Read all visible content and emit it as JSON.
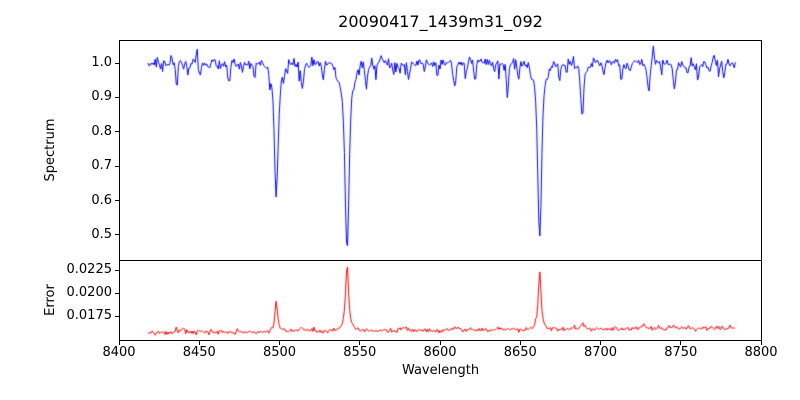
{
  "figure": {
    "background": "#ffffff",
    "text_color": "#000000",
    "spine_color": "#000000"
  },
  "chart_data": {
    "type": "line",
    "title": "20090417_1439m31_092",
    "xlabel": "Wavelength",
    "xlim": [
      8400,
      8800
    ],
    "x_ticks": [
      {
        "value": 8400,
        "label": "8400"
      },
      {
        "value": 8450,
        "label": "8450"
      },
      {
        "value": 8500,
        "label": "8500"
      },
      {
        "value": 8550,
        "label": "8550"
      },
      {
        "value": 8600,
        "label": "8600"
      },
      {
        "value": 8650,
        "label": "8650"
      },
      {
        "value": 8700,
        "label": "8700"
      },
      {
        "value": 8750,
        "label": "8750"
      },
      {
        "value": 8800,
        "label": "8800"
      }
    ],
    "data_x_start": 8418,
    "data_x_end": 8784,
    "n_points": 560,
    "panels": [
      {
        "name": "spectrum",
        "ylabel": "Spectrum",
        "color": "#0000ff",
        "ylim": [
          0.427,
          1.067
        ],
        "y_ticks": [
          {
            "value": 1.0,
            "label": "1.0"
          },
          {
            "value": 0.9,
            "label": "0.9"
          },
          {
            "value": 0.8,
            "label": "0.8"
          },
          {
            "value": 0.7,
            "label": "0.7"
          },
          {
            "value": 0.6,
            "label": "0.6"
          },
          {
            "value": 0.5,
            "label": "0.5"
          }
        ],
        "continuum": 1.0,
        "noise_sigma": 0.008,
        "dip_noise_prob": 0.07,
        "dip_noise_max": 0.045,
        "absorption_lines": [
          {
            "center": 8498.0,
            "depth": 0.28,
            "sigma": 1.05,
            "wing_depth": 0.095,
            "wing_sigma": 3.2
          },
          {
            "center": 8542.1,
            "depth": 0.42,
            "sigma": 1.15,
            "wing_depth": 0.125,
            "wing_sigma": 3.8
          },
          {
            "center": 8662.1,
            "depth": 0.4,
            "sigma": 1.1,
            "wing_depth": 0.105,
            "wing_sigma": 3.5
          },
          {
            "center": 8688.6,
            "depth": 0.125,
            "sigma": 1.0,
            "wing_depth": 0.022,
            "wing_sigma": 2.5
          },
          {
            "center": 8436.0,
            "depth": 0.055,
            "sigma": 0.7
          },
          {
            "center": 8443.0,
            "depth": 0.035,
            "sigma": 0.6
          },
          {
            "center": 8450.5,
            "depth": 0.03,
            "sigma": 0.6
          },
          {
            "center": 8468.5,
            "depth": 0.06,
            "sigma": 0.8
          },
          {
            "center": 8477.0,
            "depth": 0.033,
            "sigma": 0.6
          },
          {
            "center": 8484.0,
            "depth": 0.028,
            "sigma": 0.6
          },
          {
            "center": 8514.1,
            "depth": 0.075,
            "sigma": 0.8
          },
          {
            "center": 8518.0,
            "depth": 0.03,
            "sigma": 0.5
          },
          {
            "center": 8527.0,
            "depth": 0.035,
            "sigma": 0.6
          },
          {
            "center": 8536.0,
            "depth": 0.025,
            "sigma": 0.5
          },
          {
            "center": 8554.0,
            "depth": 0.075,
            "sigma": 0.7
          },
          {
            "center": 8560.0,
            "depth": 0.035,
            "sigma": 0.6
          },
          {
            "center": 8571.0,
            "depth": 0.03,
            "sigma": 0.6
          },
          {
            "center": 8580.5,
            "depth": 0.05,
            "sigma": 0.7
          },
          {
            "center": 8590.0,
            "depth": 0.03,
            "sigma": 0.5
          },
          {
            "center": 8598.5,
            "depth": 0.045,
            "sigma": 0.6
          },
          {
            "center": 8609.0,
            "depth": 0.065,
            "sigma": 0.8
          },
          {
            "center": 8616.0,
            "depth": 0.035,
            "sigma": 0.5
          },
          {
            "center": 8622.0,
            "depth": 0.04,
            "sigma": 0.6
          },
          {
            "center": 8634.0,
            "depth": 0.03,
            "sigma": 0.5
          },
          {
            "center": 8642.0,
            "depth": 0.075,
            "sigma": 0.8
          },
          {
            "center": 8649.0,
            "depth": 0.04,
            "sigma": 0.6
          },
          {
            "center": 8674.5,
            "depth": 0.05,
            "sigma": 0.7
          },
          {
            "center": 8679.0,
            "depth": 0.035,
            "sigma": 0.6
          },
          {
            "center": 8702.0,
            "depth": 0.035,
            "sigma": 0.6
          },
          {
            "center": 8713.0,
            "depth": 0.05,
            "sigma": 0.7
          },
          {
            "center": 8718.0,
            "depth": 0.035,
            "sigma": 0.5
          },
          {
            "center": 8730.0,
            "depth": 0.07,
            "sigma": 0.8
          },
          {
            "center": 8746.0,
            "depth": 0.085,
            "sigma": 0.8
          },
          {
            "center": 8754.0,
            "depth": 0.04,
            "sigma": 0.6
          },
          {
            "center": 8760.5,
            "depth": 0.045,
            "sigma": 0.6
          },
          {
            "center": 8768.0,
            "depth": 0.035,
            "sigma": 0.6
          },
          {
            "center": 8777.0,
            "depth": 0.04,
            "sigma": 0.6
          }
        ],
        "emission_spikes": [
          {
            "center": 8448.5,
            "height": 0.038,
            "sigma": 0.5
          },
          {
            "center": 8563.0,
            "height": 0.025,
            "sigma": 0.45
          },
          {
            "center": 8733.0,
            "height": 0.035,
            "sigma": 0.5
          },
          {
            "center": 8770.5,
            "height": 0.028,
            "sigma": 0.5
          }
        ]
      },
      {
        "name": "error",
        "ylabel": "Error",
        "color": "#ff0000",
        "ylim": [
          0.0148,
          0.0236
        ],
        "y_ticks": [
          {
            "value": 0.0225,
            "label": "0.0225"
          },
          {
            "value": 0.02,
            "label": "0.0200"
          },
          {
            "value": 0.0175,
            "label": "0.0175"
          }
        ],
        "baseline_start": 0.0157,
        "baseline_end": 0.0162,
        "noise_sigma": 0.00012,
        "bump_noise_prob": 0.05,
        "bump_noise_max": 0.0003,
        "peaks": [
          {
            "center": 8498.0,
            "height": 0.0034,
            "hwhm": 0.9
          },
          {
            "center": 8542.1,
            "height": 0.0074,
            "hwhm": 1.1
          },
          {
            "center": 8662.1,
            "height": 0.0065,
            "hwhm": 1.0
          },
          {
            "center": 8688.6,
            "height": 0.0007,
            "hwhm": 1.2
          },
          {
            "center": 8440.0,
            "height": 0.0004,
            "hwhm": 1.5
          },
          {
            "center": 8514.0,
            "height": 0.0004,
            "hwhm": 1.0
          },
          {
            "center": 8577.0,
            "height": 0.0004,
            "hwhm": 1.2
          },
          {
            "center": 8609.0,
            "height": 0.0003,
            "hwhm": 1.0
          },
          {
            "center": 8727.0,
            "height": 0.0004,
            "hwhm": 1.5
          },
          {
            "center": 8746.0,
            "height": 0.0004,
            "hwhm": 1.2
          }
        ]
      }
    ]
  }
}
